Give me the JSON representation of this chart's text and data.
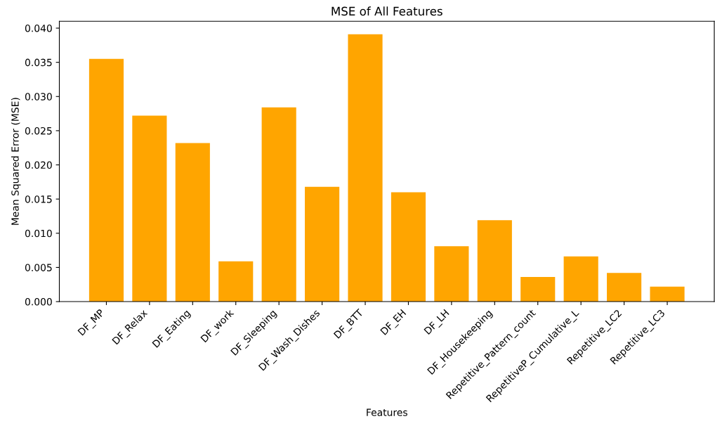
{
  "chart_data": {
    "type": "bar",
    "title": "MSE of All Features",
    "xlabel": "Features",
    "ylabel": "Mean Squared Error (MSE)",
    "categories": [
      "DF_MP",
      "DF_Relax",
      "DF_Eating",
      "DF_work",
      "DF_Sleeping",
      "DF_Wash_Dishes",
      "DF_BTT",
      "DF_EH",
      "DF_LH",
      "DF_Housekeeping",
      "Repetitive_Pattern_count",
      "RepetitiveP_Cumulative_L",
      "Repetitive_LC2",
      "Repetitive_LC3"
    ],
    "values": [
      0.0355,
      0.0272,
      0.0232,
      0.0059,
      0.0284,
      0.0168,
      0.0391,
      0.016,
      0.0081,
      0.0119,
      0.0036,
      0.0066,
      0.0042,
      0.0022
    ],
    "color": "#ffa500",
    "ylim": [
      0,
      0.041
    ],
    "yticks": [
      {
        "value": 0,
        "label": "0.000"
      },
      {
        "value": 0.005,
        "label": "0.005"
      },
      {
        "value": 0.01,
        "label": "0.010"
      },
      {
        "value": 0.015,
        "label": "0.015"
      },
      {
        "value": 0.02,
        "label": "0.020"
      },
      {
        "value": 0.025,
        "label": "0.025"
      },
      {
        "value": 0.03,
        "label": "0.030"
      },
      {
        "value": 0.035,
        "label": "0.035"
      },
      {
        "value": 0.04,
        "label": "0.040"
      }
    ],
    "grid": false
  }
}
